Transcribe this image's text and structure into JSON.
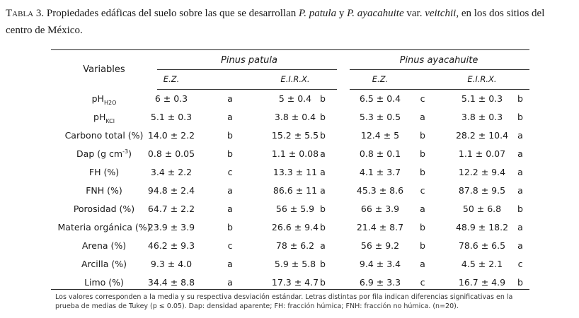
{
  "caption": {
    "label": "Tabla 3.",
    "text_a": " Propiedades edáficas del suelo sobre las que se desarrollan ",
    "species_a": "P. patula",
    "text_b": " y ",
    "species_b": "P. ayacahuite",
    "text_c": " var. ",
    "variety": "veitchii",
    "text_d": ", en los dos sitios del centro de México."
  },
  "table": {
    "variables_header": "Variables",
    "groups": [
      {
        "name": "Pinus patula",
        "sub": [
          "E.Z.",
          "E.I.R.X."
        ]
      },
      {
        "name": "Pinus ayacahuite",
        "sub": [
          "E.Z.",
          "E.I.R.X."
        ]
      }
    ],
    "rows": [
      {
        "var": "pH",
        "var_sub": "H2O",
        "var_sup": "",
        "var_rest": "",
        "cells": [
          "6 ± 0.3",
          "a",
          "5 ± 0.4",
          "b",
          "6.5 ± 0.4",
          "c",
          "5.1 ± 0.3",
          "b"
        ]
      },
      {
        "var": "pH",
        "var_sub": "KCl",
        "var_sup": "",
        "var_rest": "",
        "cells": [
          "5.1 ± 0.3",
          "a",
          "3.8 ± 0.4",
          "b",
          "5.3 ± 0.5",
          "a",
          "3.8 ± 0.3",
          "b"
        ]
      },
      {
        "var": "Carbono total (%)",
        "var_sub": "",
        "var_sup": "",
        "var_rest": "",
        "cells": [
          "14.0 ± 2.2",
          "b",
          "15.2 ± 5.5",
          "b",
          "12.4 ± 5",
          "b",
          "28.2 ± 10.4",
          "a"
        ]
      },
      {
        "var": "Dap (g cm",
        "var_sub": "",
        "var_sup": "-3",
        "var_rest": ")",
        "cells": [
          "0.8 ± 0.05",
          "b",
          "1.1 ± 0.08",
          "a",
          "0.8 ± 0.1",
          "b",
          "1.1 ± 0.07",
          "a"
        ]
      },
      {
        "var": "FH (%)",
        "var_sub": "",
        "var_sup": "",
        "var_rest": "",
        "cells": [
          "3.4 ± 2.2",
          "c",
          "13.3 ± 11",
          "a",
          "4.1 ± 3.7",
          "b",
          "12.2 ± 9.4",
          "a"
        ]
      },
      {
        "var": "FNH (%)",
        "var_sub": "",
        "var_sup": "",
        "var_rest": "",
        "cells": [
          "94.8 ± 2.4",
          "a",
          "86.6 ± 11",
          "a",
          "45.3 ± 8.6",
          "c",
          "87.8 ± 9.5",
          "a"
        ]
      },
      {
        "var": "Porosidad (%)",
        "var_sub": "",
        "var_sup": "",
        "var_rest": "",
        "cells": [
          "64.7 ± 2.2",
          "a",
          "56 ± 5.9",
          "b",
          "66 ± 3.9",
          "a",
          "50 ± 6.8",
          "b"
        ]
      },
      {
        "var": "Materia orgánica (%)",
        "var_sub": "",
        "var_sup": "",
        "var_rest": "",
        "cells": [
          "23.9 ± 3.9",
          "b",
          "26.6 ± 9.4",
          "b",
          "21.4 ± 8.7",
          "b",
          "48.9 ± 18.2",
          "a"
        ]
      },
      {
        "var": "Arena (%)",
        "var_sub": "",
        "var_sup": "",
        "var_rest": "",
        "cells": [
          "46.2 ± 9.3",
          "c",
          "78 ± 6.2",
          "a",
          "56 ± 9.2",
          "b",
          "78.6 ± 6.5",
          "a"
        ]
      },
      {
        "var": "Arcilla (%)",
        "var_sub": "",
        "var_sup": "",
        "var_rest": "",
        "cells": [
          "9.3 ± 4.0",
          "a",
          "5.9 ± 5.8",
          "b",
          "9.4 ± 3.4",
          "a",
          "4.5 ± 2.1",
          "c"
        ]
      },
      {
        "var": "Limo (%)",
        "var_sub": "",
        "var_sup": "",
        "var_rest": "",
        "cells": [
          "34.4 ± 8.8",
          "a",
          "17.3 ± 4.7",
          "b",
          "6.9 ± 3.3",
          "c",
          "16.7 ± 4.9",
          "b"
        ]
      }
    ]
  },
  "footnote": "Los valores corresponden a la media y su respectiva desviación estándar. Letras distintas por fila indican diferencias significativas en la prueba de medias de Tukey (p ≤ 0.05). Dap: densidad aparente; FH: fracción húmica; FNH: fracción no húmica. (n=20)."
}
